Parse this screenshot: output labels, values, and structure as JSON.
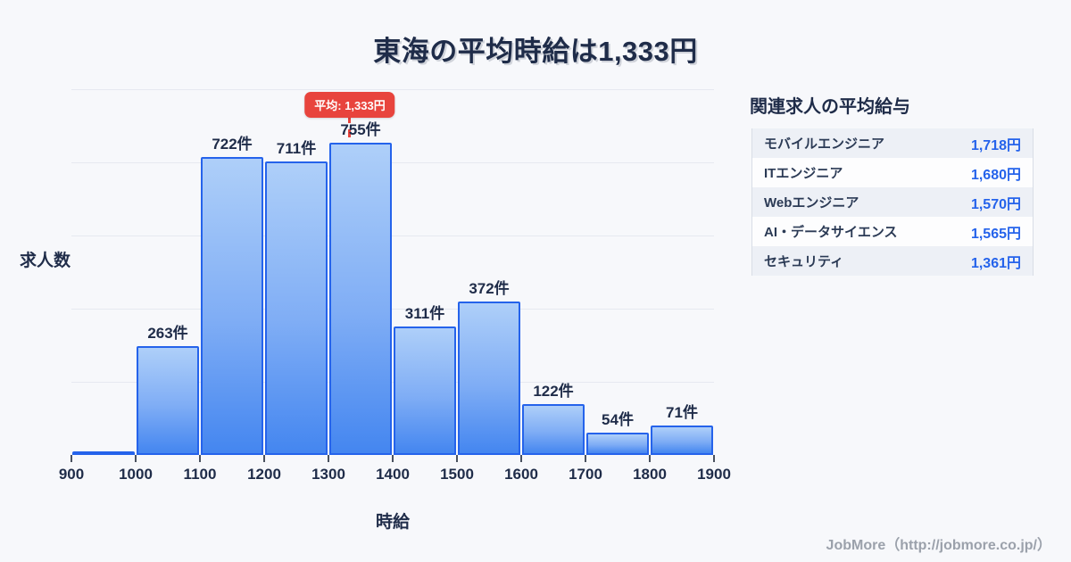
{
  "title": "東海の平均時給は1,333円",
  "chart": {
    "average_badge": "平均: 1,333円",
    "y_axis_label": "求人数",
    "x_axis_label": "時給"
  },
  "chart_data": {
    "type": "bar",
    "title": "東海の平均時給は1,333円",
    "xlabel": "時給",
    "ylabel": "求人数",
    "bin_edges": [
      900,
      1000,
      1100,
      1200,
      1300,
      1400,
      1500,
      1600,
      1700,
      1800,
      1900
    ],
    "categories": [
      "900-1000",
      "1000-1100",
      "1100-1200",
      "1200-1300",
      "1300-1400",
      "1400-1500",
      "1500-1600",
      "1600-1700",
      "1700-1800",
      "1800-1900"
    ],
    "values": [
      8,
      263,
      722,
      711,
      755,
      311,
      372,
      122,
      54,
      71
    ],
    "bar_labels": [
      "",
      "263件",
      "722件",
      "711件",
      "755件",
      "311件",
      "372件",
      "122件",
      "54件",
      "71件"
    ],
    "average_line": {
      "value": 1333,
      "label": "平均: 1,333円"
    },
    "xlim": [
      900,
      1900
    ],
    "ylim": [
      0,
      885
    ],
    "grid": "horizontal",
    "legend": "none"
  },
  "side_panel": {
    "heading": "関連求人の平均給与",
    "rows": [
      {
        "label": "モバイルエンジニア",
        "value": "1,718円"
      },
      {
        "label": "ITエンジニア",
        "value": "1,680円"
      },
      {
        "label": "Webエンジニア",
        "value": "1,570円"
      },
      {
        "label": "AI・データサイエンス",
        "value": "1,565円"
      },
      {
        "label": "セキュリティ",
        "value": "1,361円"
      }
    ]
  },
  "footer": {
    "credit": "JobMore（http://jobmore.co.jp/）"
  },
  "colors": {
    "background": "#f7f8fb",
    "navy_text": "#1f2c49",
    "bar_border": "#2563eb",
    "bar_gradient_top": "#aecff9",
    "bar_gradient_bottom": "#4486f0",
    "average_red": "#e8443d",
    "value_blue": "#2563eb",
    "gridline": "#e6e9f0",
    "footer_gray": "#9ba1ab"
  }
}
